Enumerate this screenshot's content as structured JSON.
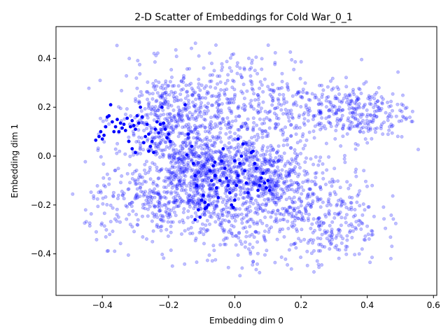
{
  "chart_data": {
    "type": "scatter",
    "title": "2-D Scatter of Embeddings for Cold War_0_1",
    "xlabel": "Embedding dim 0",
    "ylabel": "Embedding dim 1",
    "xlim": [
      -0.54,
      0.61
    ],
    "ylim": [
      -0.57,
      0.53
    ],
    "xticks": [
      -0.4,
      -0.2,
      0.0,
      0.2,
      0.4,
      0.6
    ],
    "yticks": [
      -0.4,
      -0.2,
      0.0,
      0.2,
      0.4
    ],
    "xtick_labels": [
      "−0.4",
      "−0.2",
      "0.0",
      "0.2",
      "0.4",
      "0.6"
    ],
    "ytick_labels": [
      "−0.4",
      "−0.2",
      "0.0",
      "0.2",
      "0.4"
    ],
    "grid": false,
    "legend": "none",
    "series": [
      {
        "role": "background",
        "color": "#0000ff",
        "opacity": 0.25,
        "clusters": [
          {
            "cx": -0.1,
            "cy": -0.08,
            "sx": 0.09,
            "sy": 0.09,
            "n": 700
          },
          {
            "cx": 0.1,
            "cy": -0.1,
            "sx": 0.07,
            "sy": 0.08,
            "n": 450
          },
          {
            "cx": -0.2,
            "cy": 0.15,
            "sx": 0.08,
            "sy": 0.1,
            "n": 450
          },
          {
            "cx": 0.05,
            "cy": 0.2,
            "sx": 0.12,
            "sy": 0.12,
            "n": 400
          },
          {
            "cx": 0.35,
            "cy": 0.18,
            "sx": 0.09,
            "sy": 0.06,
            "n": 300
          },
          {
            "cx": 0.28,
            "cy": -0.25,
            "sx": 0.08,
            "sy": 0.1,
            "n": 300
          },
          {
            "cx": -0.25,
            "cy": -0.2,
            "sx": 0.1,
            "sy": 0.08,
            "n": 250
          },
          {
            "cx": 0.0,
            "cy": -0.3,
            "sx": 0.08,
            "sy": 0.09,
            "n": 150
          }
        ]
      },
      {
        "role": "highlighted",
        "color": "#0000ff",
        "opacity": 1.0,
        "points": [
          [
            -0.42,
            0.065
          ],
          [
            -0.41,
            0.08
          ],
          [
            -0.405,
            0.1
          ],
          [
            -0.4,
            0.07
          ],
          [
            -0.395,
            0.085
          ],
          [
            -0.39,
            0.12
          ],
          [
            -0.385,
            0.16
          ],
          [
            -0.38,
            0.165
          ],
          [
            -0.375,
            0.21
          ],
          [
            -0.37,
            0.14
          ],
          [
            -0.365,
            0.1
          ],
          [
            -0.36,
            0.12
          ],
          [
            -0.355,
            0.15
          ],
          [
            -0.35,
            0.1
          ],
          [
            -0.345,
            0.135
          ],
          [
            -0.34,
            0.115
          ],
          [
            -0.335,
            0.13
          ],
          [
            -0.33,
            0.105
          ],
          [
            -0.325,
            0.155
          ],
          [
            -0.32,
            0.06
          ],
          [
            -0.315,
            0.12
          ],
          [
            -0.31,
            0.145
          ],
          [
            -0.305,
            0.125
          ],
          [
            -0.3,
            0.11
          ],
          [
            -0.295,
            0.165
          ],
          [
            -0.29,
            0.135
          ],
          [
            -0.285,
            0.2
          ],
          [
            -0.28,
            0.16
          ],
          [
            -0.275,
            0.055
          ],
          [
            -0.27,
            0.08
          ],
          [
            -0.265,
            0.13
          ],
          [
            -0.26,
            0.09
          ],
          [
            -0.255,
            0.04
          ],
          [
            -0.25,
            0.06
          ],
          [
            -0.245,
            0.015
          ],
          [
            -0.24,
            0.11
          ],
          [
            -0.235,
            0.14
          ],
          [
            -0.23,
            0.095
          ],
          [
            -0.225,
            0.13
          ],
          [
            -0.22,
            0.2
          ],
          [
            -0.215,
            0.135
          ],
          [
            -0.21,
            0.11
          ],
          [
            -0.205,
            0.075
          ],
          [
            -0.2,
            0.09
          ],
          [
            -0.195,
            0.06
          ],
          [
            -0.3,
            0.015
          ],
          [
            -0.31,
            0.03
          ],
          [
            -0.26,
            0.02
          ],
          [
            -0.15,
            0.21
          ],
          [
            -0.145,
            0.005
          ],
          [
            -0.14,
            0.09
          ],
          [
            -0.13,
            0.04
          ],
          [
            -0.125,
            -0.03
          ],
          [
            -0.12,
            -0.08
          ],
          [
            -0.115,
            -0.12
          ],
          [
            -0.11,
            -0.22
          ],
          [
            -0.105,
            -0.25
          ],
          [
            -0.1,
            -0.18
          ],
          [
            -0.095,
            -0.16
          ],
          [
            -0.09,
            -0.19
          ],
          [
            -0.085,
            -0.21
          ],
          [
            -0.08,
            -0.2
          ],
          [
            -0.075,
            -0.06
          ],
          [
            -0.07,
            -0.1
          ],
          [
            -0.065,
            -0.04
          ],
          [
            -0.06,
            -0.08
          ],
          [
            -0.055,
            -0.13
          ],
          [
            -0.05,
            -0.17
          ],
          [
            -0.045,
            -0.1
          ],
          [
            -0.04,
            -0.02
          ],
          [
            -0.035,
            0.03
          ],
          [
            -0.03,
            -0.05
          ],
          [
            -0.025,
            -0.09
          ],
          [
            -0.02,
            -0.12
          ],
          [
            -0.015,
            -0.15
          ],
          [
            -0.01,
            -0.2
          ],
          [
            -0.005,
            -0.21
          ],
          [
            0.0,
            -0.18
          ],
          [
            0.005,
            -0.12
          ],
          [
            0.01,
            -0.08
          ],
          [
            0.015,
            -0.03
          ],
          [
            0.02,
            0.0
          ],
          [
            0.025,
            0.05
          ],
          [
            0.03,
            -0.06
          ],
          [
            0.035,
            -0.11
          ],
          [
            0.04,
            -0.15
          ],
          [
            0.05,
            0.015
          ],
          [
            0.055,
            0.02
          ],
          [
            0.06,
            -0.03
          ],
          [
            0.065,
            -0.05
          ],
          [
            0.07,
            -0.14
          ],
          [
            0.075,
            -0.12
          ],
          [
            0.08,
            -0.09
          ],
          [
            0.085,
            -0.07
          ],
          [
            0.09,
            -0.11
          ],
          [
            0.095,
            -0.13
          ],
          [
            0.1,
            -0.1
          ],
          [
            0.105,
            -0.14
          ],
          [
            -0.12,
            -0.26
          ],
          [
            -0.09,
            -0.215
          ],
          [
            -0.06,
            -0.025
          ],
          [
            0.0,
            -0.02
          ],
          [
            0.01,
            0.07
          ]
        ]
      }
    ]
  }
}
